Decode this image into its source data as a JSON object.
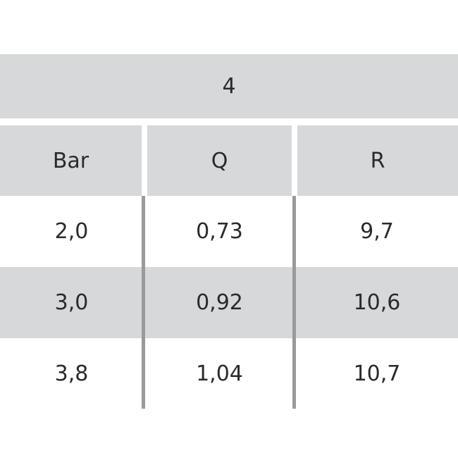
{
  "table": {
    "title": "4",
    "headers": [
      "Bar",
      "Q",
      "R"
    ],
    "rows": [
      [
        "2,0",
        "0,73",
        "9,7"
      ],
      [
        "3,0",
        "0,92",
        "10,6"
      ],
      [
        "3,8",
        "1,04",
        "10,7"
      ]
    ],
    "colors": {
      "shaded": "#d7d8d9",
      "divider": "#9a9a9a",
      "text": "#2a2a2a"
    }
  }
}
